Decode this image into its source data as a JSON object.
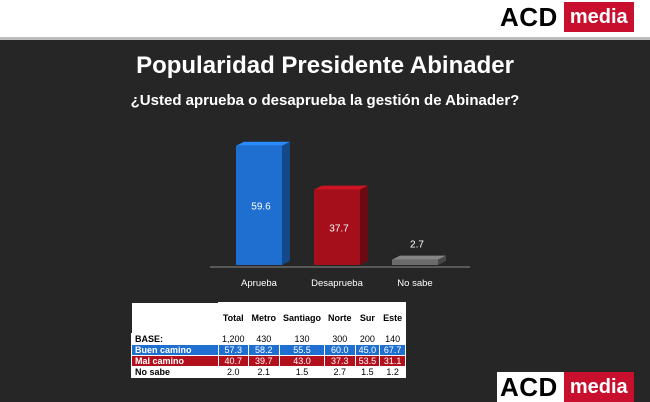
{
  "brand": {
    "acd": "ACD",
    "media": "media",
    "accent": "#c8102e"
  },
  "title": "Popularidad Presidente Abinader",
  "subtitle": "¿Usted aprueba o desaprueba la gestión de Abinader?",
  "chart_data": {
    "type": "bar",
    "categories": [
      "Aprueba",
      "Desaprueba",
      "No sabe"
    ],
    "values": [
      59.6,
      37.7,
      2.7
    ],
    "colors": [
      "#1f6fd1",
      "#a50f1b",
      "#6b6b6b"
    ],
    "ylim": [
      0,
      60
    ],
    "grid": false,
    "legend": "none"
  },
  "table": {
    "columns": [
      "",
      "Total",
      "Metro",
      "Santiago",
      "Norte",
      "Sur",
      "Este"
    ],
    "rows": [
      {
        "label": "BASE:",
        "values": [
          "1,200",
          "430",
          "130",
          "300",
          "200",
          "140"
        ]
      },
      {
        "label": "Buen camino",
        "values": [
          "57.3",
          "58.2",
          "55.5",
          "60.0",
          "45.0",
          "67.7"
        ]
      },
      {
        "label": "Mal camino",
        "values": [
          "40.7",
          "39.7",
          "43.0",
          "37.3",
          "53.5",
          "31.1"
        ]
      },
      {
        "label": "No sabe",
        "values": [
          "2.0",
          "2.1",
          "1.5",
          "2.7",
          "1.5",
          "1.2"
        ]
      }
    ]
  }
}
